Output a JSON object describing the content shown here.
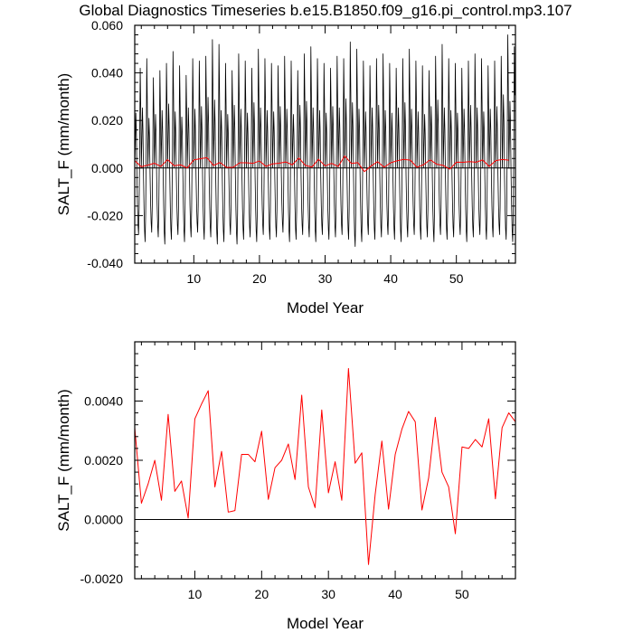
{
  "title": "Global Diagnostics Timeseries b.e15.B1850.f09_g16.pi_control.mp3.107",
  "chart_data": [
    {
      "type": "line",
      "xlabel": "Model Year",
      "ylabel": "SALT_F (mm/month)",
      "xlim": [
        1,
        59
      ],
      "ylim": [
        -0.04,
        0.06
      ],
      "xticks": [
        10,
        20,
        30,
        40,
        50
      ],
      "yticks": [
        -0.04,
        -0.02,
        0.0,
        0.02,
        0.04,
        0.06
      ],
      "ytick_labels": [
        "-0.040",
        "-0.020",
        "0.000",
        "0.020",
        "0.040",
        "0.060"
      ],
      "zero_line": true,
      "series": [
        {
          "color": "#000000",
          "monthly": true,
          "annual_peaks": [
            0.042,
            0.046,
            0.038,
            0.041,
            0.044,
            0.049,
            0.043,
            0.039,
            0.046,
            0.045,
            0.047,
            0.054,
            0.052,
            0.044,
            0.041,
            0.048,
            0.045,
            0.042,
            0.05,
            0.046,
            0.044,
            0.043,
            0.047,
            0.045,
            0.041,
            0.048,
            0.051,
            0.046,
            0.044,
            0.042,
            0.047,
            0.046,
            0.053,
            0.05,
            0.045,
            0.043,
            0.046,
            0.048,
            0.044,
            0.042,
            0.046,
            0.05,
            0.045,
            0.043,
            0.041,
            0.047,
            0.052,
            0.046,
            0.044,
            0.042,
            0.045,
            0.048,
            0.046,
            0.043,
            0.045,
            0.047,
            0.056,
            0.051
          ],
          "annual_troughs": [
            -0.028,
            -0.031,
            -0.027,
            -0.029,
            -0.032,
            -0.03,
            -0.028,
            -0.031,
            -0.029,
            -0.027,
            -0.03,
            -0.029,
            -0.032,
            -0.031,
            -0.028,
            -0.032,
            -0.03,
            -0.029,
            -0.031,
            -0.028,
            -0.03,
            -0.029,
            -0.027,
            -0.031,
            -0.03,
            -0.028,
            -0.029,
            -0.031,
            -0.028,
            -0.03,
            -0.029,
            -0.028,
            -0.03,
            -0.033,
            -0.031,
            -0.028,
            -0.03,
            -0.029,
            -0.028,
            -0.03,
            -0.031,
            -0.029,
            -0.028,
            -0.03,
            -0.029,
            -0.031,
            -0.028,
            -0.03,
            -0.029,
            -0.028,
            -0.031,
            -0.029,
            -0.028,
            -0.03,
            -0.029,
            -0.028,
            -0.03,
            -0.031
          ]
        },
        {
          "color": "#ff0000",
          "x": [
            1,
            2,
            3,
            4,
            5,
            6,
            7,
            8,
            9,
            10,
            11,
            12,
            13,
            14,
            15,
            16,
            17,
            18,
            19,
            20,
            21,
            22,
            23,
            24,
            25,
            26,
            27,
            28,
            29,
            30,
            31,
            32,
            33,
            34,
            35,
            36,
            37,
            38,
            39,
            40,
            41,
            42,
            43,
            44,
            45,
            46,
            47,
            48,
            49,
            50,
            51,
            52,
            53,
            54,
            55,
            56,
            57,
            58
          ],
          "values": [
            0.0031,
            0.00055,
            0.0012,
            0.002,
            0.00065,
            0.00355,
            0.00095,
            0.0013,
            5e-05,
            0.0034,
            0.0039,
            0.00435,
            0.0011,
            0.0023,
            0.00025,
            0.0003,
            0.0022,
            0.0022,
            0.00195,
            0.00298,
            0.00068,
            0.00175,
            0.002,
            0.00255,
            0.00135,
            0.0042,
            0.0011,
            0.0004,
            0.0037,
            0.0009,
            0.00195,
            0.00065,
            0.0051,
            0.0019,
            0.00225,
            -0.00152,
            0.00085,
            0.00265,
            0.00035,
            0.0022,
            0.00305,
            0.00365,
            0.0033,
            0.00032,
            0.0014,
            0.00345,
            0.0016,
            0.0011,
            -0.00048,
            0.00245,
            0.0024,
            0.0027,
            0.00245,
            0.0034,
            0.0007,
            0.0031,
            0.0036,
            0.0033
          ]
        }
      ]
    },
    {
      "type": "line",
      "xlabel": "Model Year",
      "ylabel": "SALT_F (mm/month)",
      "xlim": [
        1,
        58
      ],
      "ylim": [
        -0.002,
        0.006
      ],
      "xticks": [
        10,
        20,
        30,
        40,
        50
      ],
      "yticks": [
        -0.002,
        0.0,
        0.002,
        0.004
      ],
      "ytick_labels": [
        "-0.0020",
        "0.0000",
        "0.0020",
        "0.0040"
      ],
      "zero_line": true,
      "series": [
        {
          "color": "#ff0000",
          "x": [
            1,
            2,
            3,
            4,
            5,
            6,
            7,
            8,
            9,
            10,
            11,
            12,
            13,
            14,
            15,
            16,
            17,
            18,
            19,
            20,
            21,
            22,
            23,
            24,
            25,
            26,
            27,
            28,
            29,
            30,
            31,
            32,
            33,
            34,
            35,
            36,
            37,
            38,
            39,
            40,
            41,
            42,
            43,
            44,
            45,
            46,
            47,
            48,
            49,
            50,
            51,
            52,
            53,
            54,
            55,
            56,
            57,
            58
          ],
          "values": [
            0.0031,
            0.00055,
            0.0012,
            0.002,
            0.00065,
            0.00355,
            0.00095,
            0.0013,
            5e-05,
            0.0034,
            0.0039,
            0.00435,
            0.0011,
            0.0023,
            0.00025,
            0.0003,
            0.0022,
            0.0022,
            0.00195,
            0.00298,
            0.00068,
            0.00175,
            0.002,
            0.00255,
            0.00135,
            0.0042,
            0.0011,
            0.0004,
            0.0037,
            0.0009,
            0.00195,
            0.00065,
            0.0051,
            0.0019,
            0.00225,
            -0.00152,
            0.00085,
            0.00265,
            0.00035,
            0.0022,
            0.00305,
            0.00365,
            0.0033,
            0.00032,
            0.0014,
            0.00345,
            0.0016,
            0.0011,
            -0.00048,
            0.00245,
            0.0024,
            0.0027,
            0.00245,
            0.0034,
            0.0007,
            0.0031,
            0.0036,
            0.0033
          ]
        }
      ]
    }
  ]
}
